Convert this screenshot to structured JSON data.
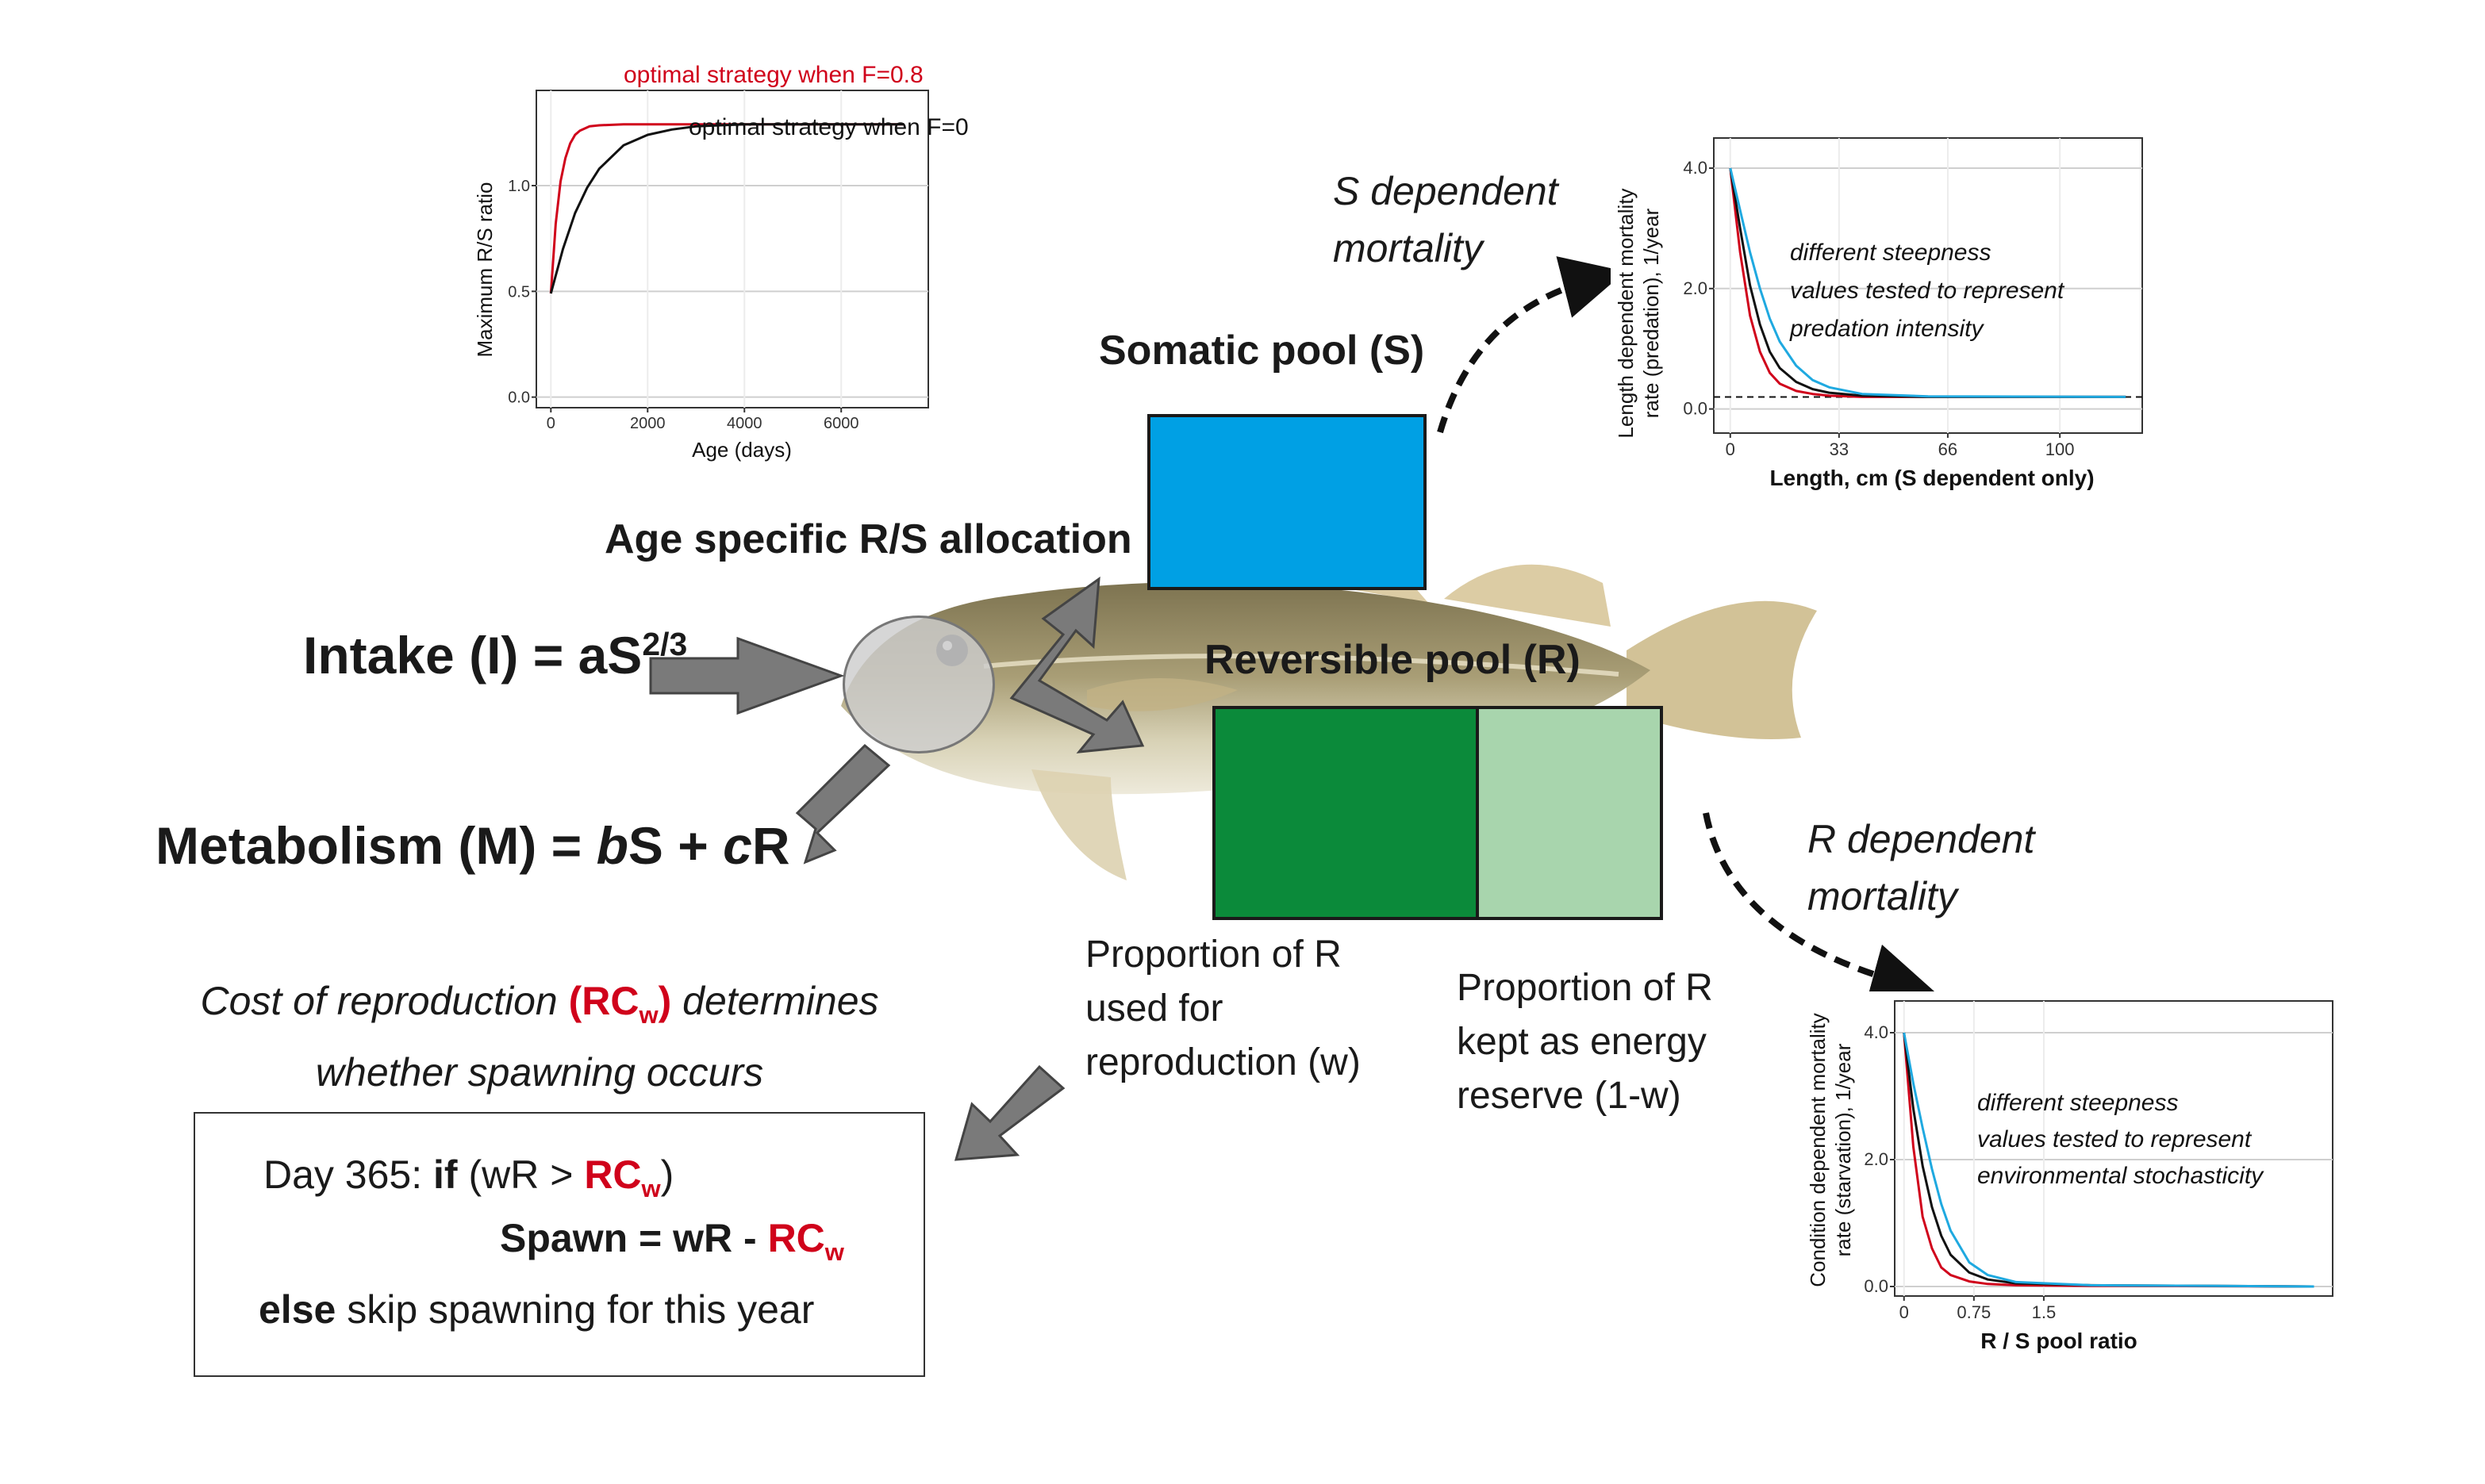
{
  "colors": {
    "somatic_pool": "#00a0e4",
    "reserve_reproduction": "#0b8a3a",
    "reserve_energy": "#a8d5ad",
    "arrow_gray": "#7a7a7a",
    "curve_red": "#d0021b",
    "curve_black": "#111111",
    "curve_cyan": "#1fa9e0"
  },
  "labels": {
    "intake_main": "Intake (I) = aS",
    "intake_exp": "2/3",
    "metabolism_a": "Metabolism (M) = ",
    "metabolism_b": "b",
    "metabolism_c": "S + ",
    "metabolism_d": "c",
    "metabolism_e": "R",
    "age_alloc": "Age specific R/S allocation",
    "somatic_pool": "Somatic pool (S)",
    "reversible_pool": "Reversible pool (R)",
    "s_mortality_1": "S dependent",
    "s_mortality_2": "mortality",
    "r_mortality_1": "R dependent",
    "r_mortality_2": "mortality",
    "prop_repro_1": "Proportion of R",
    "prop_repro_2": "used for",
    "prop_repro_3": "reproduction (w)",
    "prop_reserve_1": "Proportion of R",
    "prop_reserve_2": "kept as energy",
    "prop_reserve_3": "reserve (1-w)",
    "cost_a": "Cost of reproduction ",
    "cost_b": "(RC",
    "cost_sub": "w",
    "cost_c": ")",
    "cost_d": " determines",
    "cost_line2": "whether spawning occurs"
  },
  "rule_box": {
    "l1_a": "Day 365: ",
    "l1_if": "if",
    "l1_b": " (wR > ",
    "l1_rc": "RC",
    "l1_sub": "w",
    "l1_c": ")",
    "l2_a": "Spawn = wR - ",
    "l2_rc": "RC",
    "l2_sub": "w",
    "l3_else": "else",
    "l3_b": " skip spawning for this year"
  },
  "chart_data": [
    {
      "type": "line",
      "xlabel": "Age (days)",
      "ylabel": "Maximum R/S ratio",
      "xlim": [
        -300,
        7800
      ],
      "ylim": [
        -0.05,
        1.45
      ],
      "x_ticks": [
        0,
        2000,
        4000,
        6000
      ],
      "x_tick_labels": [
        "0",
        "2000",
        "4000",
        "6000"
      ],
      "y_ticks": [
        0.0,
        0.5,
        1.0
      ],
      "y_tick_labels": [
        "0.0",
        "0.5",
        "1.0"
      ],
      "grid": true,
      "series": [
        {
          "name": "optimal strategy when F=0.8",
          "color": "#d0021b",
          "x": [
            0,
            100,
            200,
            300,
            400,
            500,
            600,
            800,
            1000,
            1500,
            2000,
            4000,
            6000,
            7300
          ],
          "y": [
            0.49,
            0.82,
            1.02,
            1.13,
            1.2,
            1.24,
            1.26,
            1.28,
            1.285,
            1.29,
            1.29,
            1.29,
            1.29,
            1.29
          ]
        },
        {
          "name": "optimal strategy when F=0",
          "color": "#111111",
          "x": [
            0,
            250,
            500,
            750,
            1000,
            1500,
            2000,
            2500,
            3000,
            4000,
            5000,
            6000,
            7300
          ],
          "y": [
            0.49,
            0.7,
            0.87,
            0.99,
            1.08,
            1.19,
            1.24,
            1.265,
            1.28,
            1.29,
            1.29,
            1.29,
            1.29
          ]
        }
      ]
    },
    {
      "type": "line",
      "xlabel": "Length, cm (S dependent only)",
      "ylabel_1": "Length dependent mortality",
      "ylabel_2": "rate (predation), 1/year",
      "annotation_1": "different steepness",
      "annotation_2": "values tested to represent",
      "annotation_3": "predation intensity",
      "xlim": [
        -5,
        125
      ],
      "ylim": [
        -0.4,
        4.5
      ],
      "x_ticks": [
        0,
        33,
        66,
        100
      ],
      "x_tick_labels": [
        "0",
        "33",
        "66",
        "100"
      ],
      "y_ticks": [
        0.0,
        2.0,
        4.0
      ],
      "y_tick_labels": [
        "0.0",
        "2.0",
        "4.0"
      ],
      "baseline": 0.2,
      "grid": true,
      "series": [
        {
          "color": "#d0021b",
          "x": [
            0,
            3,
            6,
            9,
            12,
            15,
            20,
            25,
            30,
            40,
            60,
            120
          ],
          "y": [
            4.0,
            2.6,
            1.55,
            0.95,
            0.6,
            0.42,
            0.3,
            0.25,
            0.22,
            0.2,
            0.2,
            0.2
          ]
        },
        {
          "color": "#111111",
          "x": [
            0,
            3,
            6,
            9,
            12,
            15,
            20,
            25,
            30,
            40,
            60,
            120
          ],
          "y": [
            4.0,
            3.0,
            2.05,
            1.4,
            0.95,
            0.68,
            0.45,
            0.33,
            0.27,
            0.22,
            0.2,
            0.2
          ]
        },
        {
          "color": "#1fa9e0",
          "x": [
            0,
            3,
            6,
            9,
            12,
            15,
            20,
            25,
            30,
            40,
            60,
            120
          ],
          "y": [
            4.0,
            3.3,
            2.6,
            2.0,
            1.5,
            1.12,
            0.72,
            0.48,
            0.36,
            0.25,
            0.21,
            0.2
          ]
        }
      ]
    },
    {
      "type": "line",
      "xlabel": "R / S pool ratio",
      "ylabel_1": "Condition dependent mortality",
      "ylabel_2": "rate (starvation), 1/year",
      "annotation_1": "different steepness",
      "annotation_2": "values tested to represent",
      "annotation_3": "environmental stochasticity",
      "xlim": [
        -0.1,
        4.6
      ],
      "ylim": [
        -0.15,
        4.5
      ],
      "x_ticks": [
        0,
        0.75,
        1.5
      ],
      "x_tick_labels": [
        "0",
        "0.75",
        "1.5"
      ],
      "y_ticks": [
        0.0,
        2.0,
        4.0
      ],
      "y_tick_labels": [
        "0.0",
        "2.0",
        "4.0"
      ],
      "grid": true,
      "series": [
        {
          "color": "#d0021b",
          "x": [
            0,
            0.1,
            0.2,
            0.3,
            0.4,
            0.5,
            0.7,
            0.9,
            1.2,
            2.0,
            4.4
          ],
          "y": [
            4.0,
            2.2,
            1.1,
            0.6,
            0.3,
            0.18,
            0.08,
            0.04,
            0.02,
            0.01,
            0.0
          ]
        },
        {
          "color": "#111111",
          "x": [
            0,
            0.1,
            0.2,
            0.3,
            0.4,
            0.5,
            0.7,
            0.9,
            1.2,
            2.0,
            4.4
          ],
          "y": [
            4.0,
            2.8,
            1.9,
            1.25,
            0.8,
            0.5,
            0.22,
            0.11,
            0.05,
            0.02,
            0.0
          ]
        },
        {
          "color": "#1fa9e0",
          "x": [
            0,
            0.1,
            0.2,
            0.3,
            0.4,
            0.5,
            0.7,
            0.9,
            1.2,
            2.0,
            4.4
          ],
          "y": [
            4.0,
            3.2,
            2.5,
            1.85,
            1.3,
            0.88,
            0.38,
            0.18,
            0.07,
            0.02,
            0.0
          ]
        }
      ]
    }
  ]
}
